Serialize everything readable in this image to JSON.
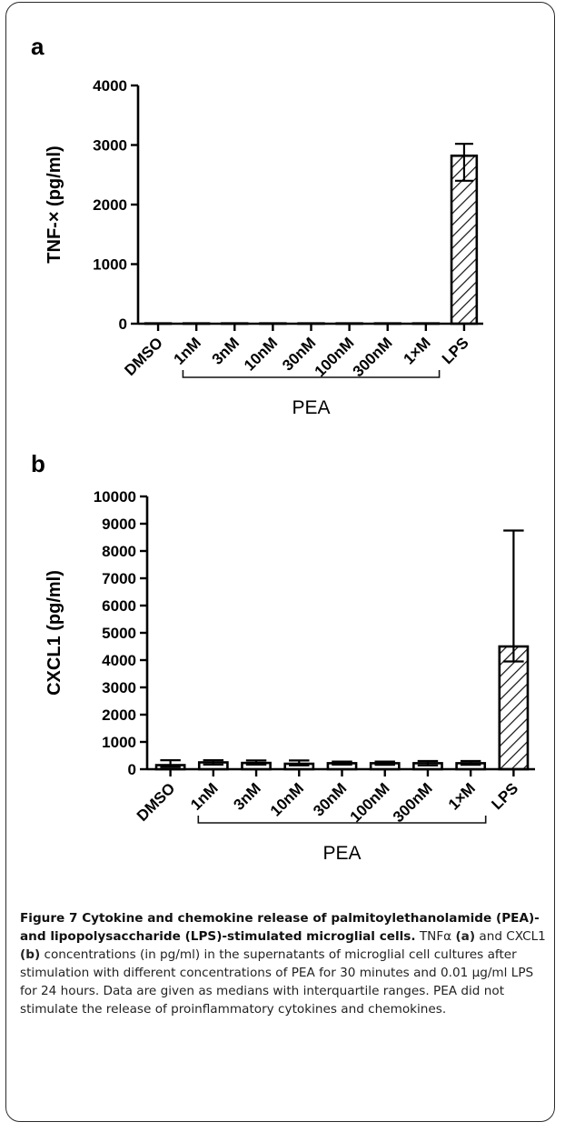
{
  "panels": [
    {
      "letter": "a"
    },
    {
      "letter": "b"
    }
  ],
  "chart_data": [
    {
      "type": "bar",
      "panel": "a",
      "categories": [
        "DMSO",
        "1nM",
        "3nM",
        "10nM",
        "30nM",
        "100nM",
        "300nM",
        "1×M",
        "LPS"
      ],
      "values": [
        5,
        5,
        5,
        5,
        5,
        5,
        5,
        5,
        2820
      ],
      "error_low": [
        5,
        5,
        5,
        5,
        5,
        5,
        5,
        5,
        2400
      ],
      "error_high": [
        5,
        5,
        5,
        5,
        5,
        5,
        5,
        5,
        3020
      ],
      "hatched": [
        false,
        false,
        false,
        false,
        false,
        false,
        false,
        false,
        true
      ],
      "ylabel": "TNF-× (pg/ml)",
      "yticks": [
        "0",
        "1000",
        "2000",
        "3000",
        "4000"
      ],
      "ylim": [
        0,
        4000
      ],
      "group_label": "PEA",
      "group_range": [
        "1nM",
        "1×M"
      ]
    },
    {
      "type": "bar",
      "panel": "b",
      "categories": [
        "DMSO",
        "1nM",
        "3nM",
        "10nM",
        "30nM",
        "100nM",
        "300nM",
        "1×M",
        "LPS"
      ],
      "values": [
        150,
        250,
        230,
        200,
        220,
        220,
        220,
        220,
        4500
      ],
      "error_low": [
        80,
        170,
        170,
        140,
        170,
        160,
        140,
        160,
        3950
      ],
      "error_high": [
        330,
        330,
        320,
        320,
        280,
        280,
        300,
        300,
        8750
      ],
      "hatched": [
        false,
        false,
        false,
        false,
        false,
        false,
        false,
        false,
        true
      ],
      "ylabel": "CXCL1 (pg/ml)",
      "yticks": [
        "0",
        "1000",
        "2000",
        "3000",
        "4000",
        "5000",
        "6000",
        "7000",
        "8000",
        "9000",
        "10000"
      ],
      "ylim": [
        0,
        10000
      ],
      "group_label": "PEA",
      "group_range": [
        "1nM",
        "1×M"
      ]
    }
  ],
  "caption": {
    "title": "Figure 7 Cytokine and chemokine release of palmitoylethanolamide (PEA)- and lipopolysaccharide (LPS)-stimulated microglial cells.",
    "seg1": " TNFα ",
    "ref_a": "(a)",
    "seg2": " and CXCL1 ",
    "ref_b": "(b)",
    "seg3": " concentrations (in pg/ml) in the supernatants of microglial cell cultures after stimulation with different concentrations of PEA for 30 minutes and 0.01 µg/ml LPS for 24 hours. Data are given as medians with interquartile ranges. PEA did not stimulate the release of proinflammatory cytokines and chemokines."
  }
}
